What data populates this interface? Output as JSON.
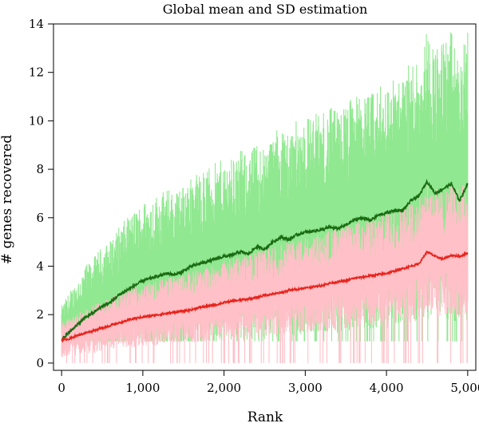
{
  "chart_data": {
    "type": "line",
    "title": "Global mean and SD estimation",
    "xlabel": "Rank",
    "ylabel": "# genes recovered",
    "xlim": [
      -100,
      5100
    ],
    "ylim": [
      -0.3,
      14
    ],
    "xticks": [
      0,
      1000,
      2000,
      3000,
      4000,
      5000
    ],
    "xtick_labels": [
      "0",
      "1,000",
      "2,000",
      "3,000",
      "4,000",
      "5,000"
    ],
    "yticks": [
      0,
      2,
      4,
      6,
      8,
      10,
      12,
      14
    ],
    "ytick_labels": [
      "0",
      "2",
      "4",
      "6",
      "8",
      "10",
      "12",
      "14"
    ],
    "grid": false,
    "colors": {
      "mean_line_1": "#1a6b12",
      "band_1": "#90e890",
      "mean_line_2": "#e8241c",
      "band_2": "#ffc0c8"
    },
    "series": [
      {
        "role": "mean_line_1",
        "x": [
          0,
          100,
          200,
          300,
          400,
          500,
          600,
          700,
          800,
          900,
          1000,
          1100,
          1200,
          1300,
          1400,
          1500,
          1600,
          1700,
          1800,
          1900,
          2000,
          2100,
          2200,
          2300,
          2400,
          2500,
          2600,
          2700,
          2800,
          2900,
          3000,
          3100,
          3200,
          3300,
          3400,
          3500,
          3600,
          3700,
          3800,
          3900,
          4000,
          4100,
          4200,
          4300,
          4400,
          4500,
          4600,
          4700,
          4800,
          4900,
          5000
        ],
        "y": [
          0.95,
          1.3,
          1.6,
          1.9,
          2.1,
          2.35,
          2.5,
          2.8,
          3.0,
          3.2,
          3.4,
          3.5,
          3.6,
          3.7,
          3.65,
          3.8,
          4.0,
          4.1,
          4.2,
          4.3,
          4.4,
          4.45,
          4.6,
          4.5,
          4.8,
          4.7,
          5.0,
          5.2,
          5.1,
          5.3,
          5.4,
          5.45,
          5.5,
          5.6,
          5.55,
          5.7,
          5.9,
          6.0,
          5.9,
          6.1,
          6.2,
          6.3,
          6.3,
          6.7,
          6.9,
          7.5,
          7.0,
          7.2,
          7.4,
          6.7,
          7.4
        ]
      },
      {
        "role": "mean_line_2",
        "x": [
          0,
          100,
          200,
          300,
          400,
          500,
          600,
          700,
          800,
          900,
          1000,
          1100,
          1200,
          1300,
          1400,
          1500,
          1600,
          1700,
          1800,
          1900,
          2000,
          2100,
          2200,
          2300,
          2400,
          2500,
          2600,
          2700,
          2800,
          2900,
          3000,
          3100,
          3200,
          3300,
          3400,
          3500,
          3600,
          3700,
          3800,
          3900,
          4000,
          4100,
          4200,
          4300,
          4400,
          4500,
          4600,
          4700,
          4800,
          4900,
          5000
        ],
        "y": [
          0.95,
          1.0,
          1.15,
          1.25,
          1.35,
          1.45,
          1.55,
          1.65,
          1.75,
          1.85,
          1.9,
          1.95,
          2.0,
          2.05,
          2.1,
          2.15,
          2.2,
          2.3,
          2.35,
          2.4,
          2.5,
          2.55,
          2.6,
          2.65,
          2.7,
          2.8,
          2.85,
          2.9,
          3.0,
          3.05,
          3.1,
          3.15,
          3.2,
          3.3,
          3.35,
          3.4,
          3.5,
          3.55,
          3.6,
          3.65,
          3.7,
          3.8,
          3.9,
          4.0,
          4.1,
          4.6,
          4.4,
          4.3,
          4.45,
          4.4,
          4.55
        ]
      }
    ]
  }
}
